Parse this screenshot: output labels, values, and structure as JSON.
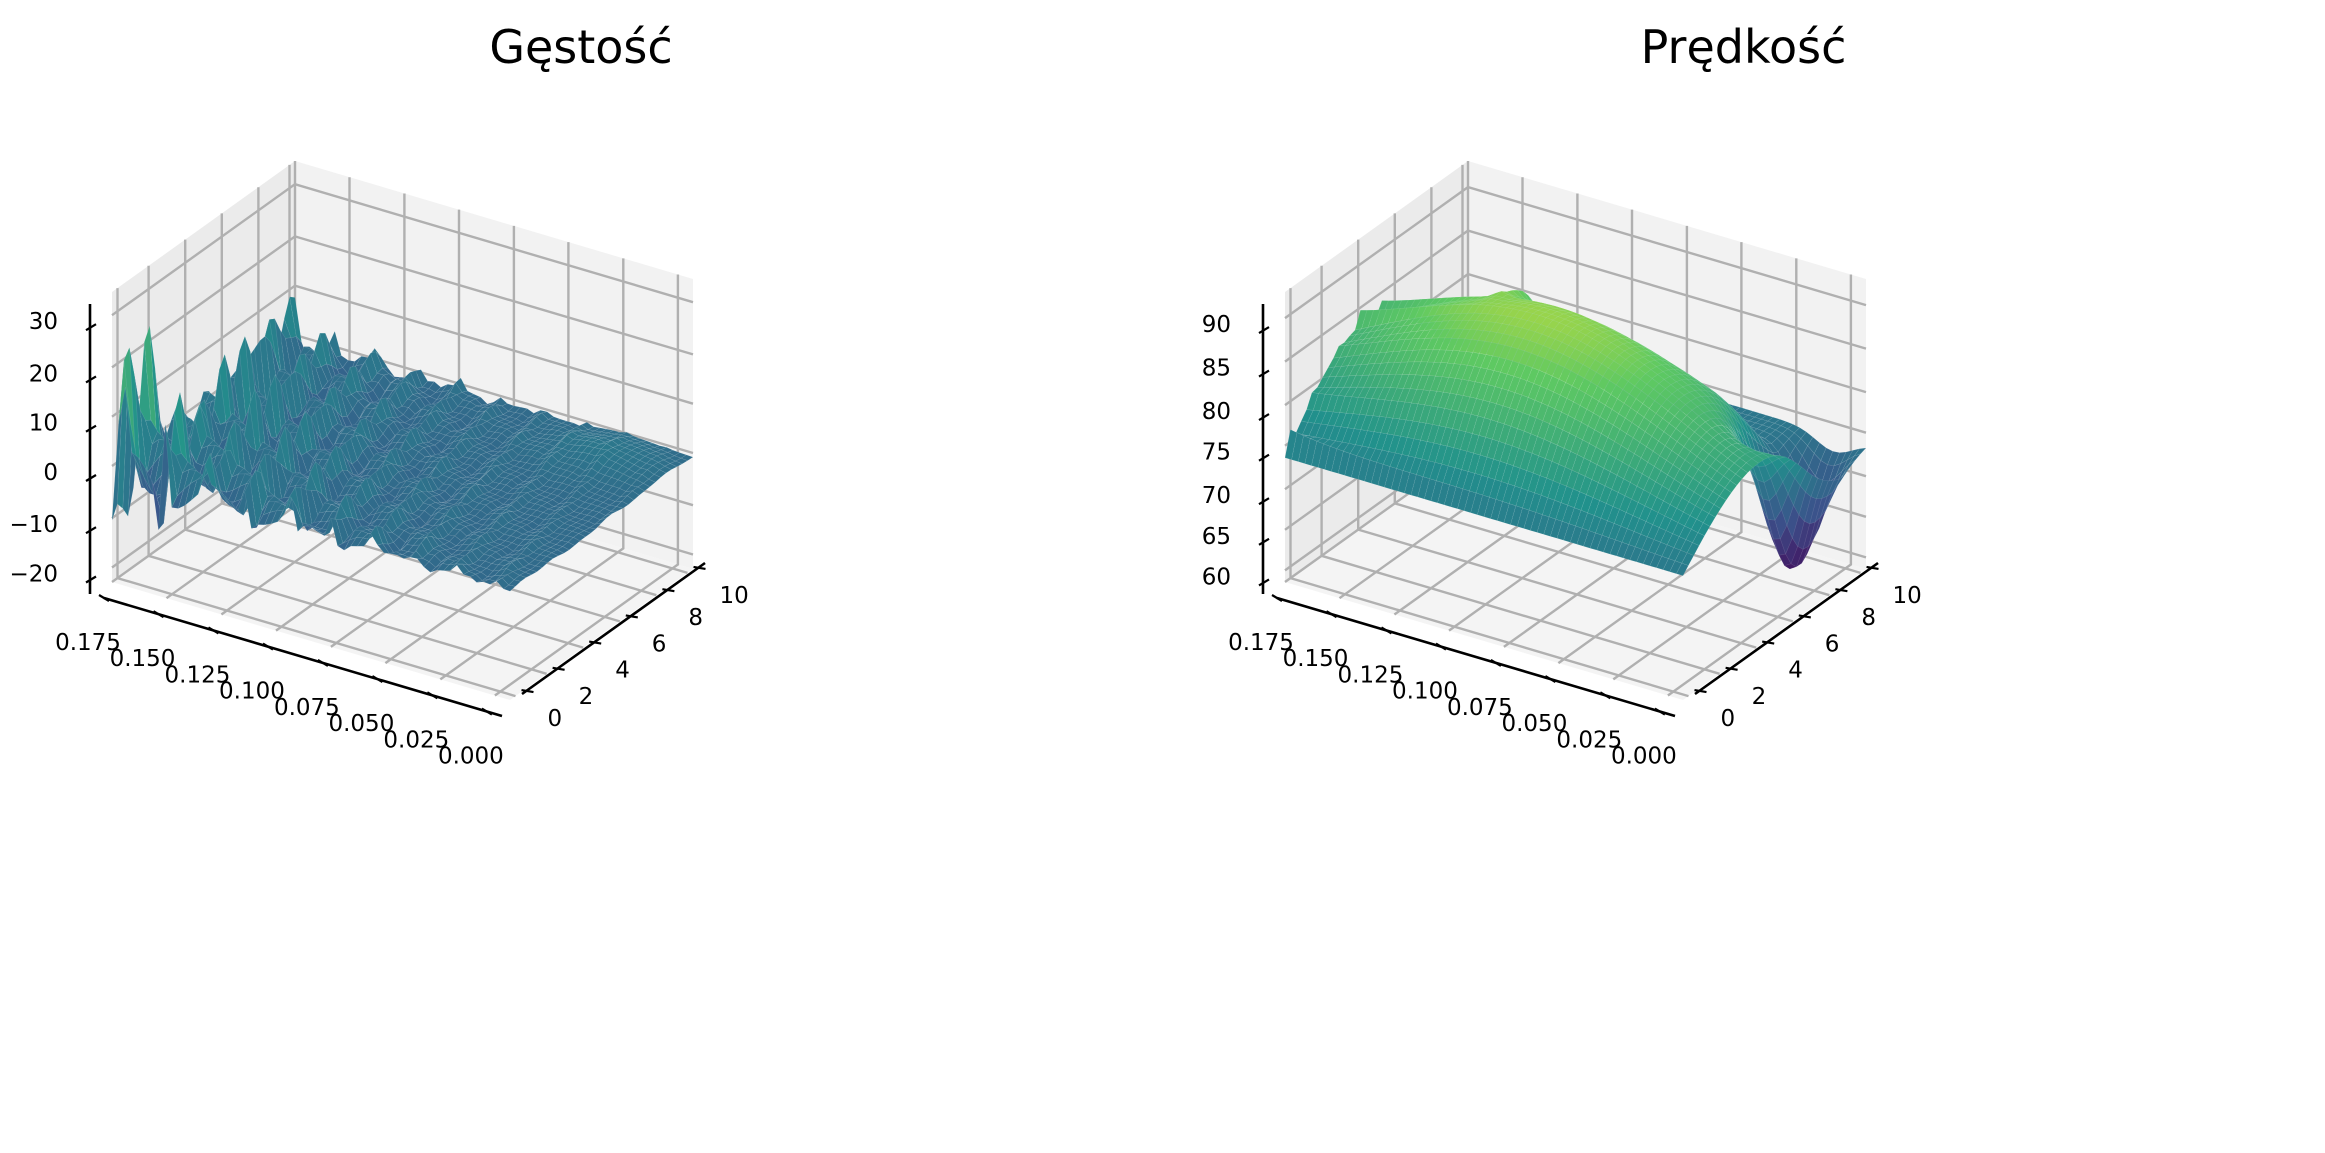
{
  "chart_data": [
    {
      "type": "surface3d",
      "title": "Gęstość",
      "xlabel": "",
      "ylabel": "",
      "zlabel": "",
      "x_ticks": [
        "0.175",
        "0.150",
        "0.125",
        "0.100",
        "0.075",
        "0.050",
        "0.025",
        "0.000"
      ],
      "y_ticks": [
        "0",
        "2",
        "4",
        "6",
        "8",
        "10"
      ],
      "z_ticks": [
        "−20",
        "−10",
        "0",
        "10",
        "20",
        "30"
      ],
      "xlim": [
        0,
        0.18
      ],
      "ylim": [
        0,
        10
      ],
      "zlim": [
        -20,
        38
      ],
      "colormap": "viridis",
      "grid": true,
      "surface_description_points": [
        {
          "x": 0.17,
          "y": 0.5,
          "z": 5
        },
        {
          "x": 0.12,
          "y": 1.0,
          "z": 32
        },
        {
          "x": 0.1,
          "y": 3.0,
          "z": 30
        },
        {
          "x": 0.05,
          "y": 8.0,
          "z": 12
        },
        {
          "x": 0.0,
          "y": 10.0,
          "z": 3
        }
      ]
    },
    {
      "type": "surface3d",
      "title": "Prędkość",
      "xlabel": "",
      "ylabel": "",
      "zlabel": "",
      "x_ticks": [
        "0.175",
        "0.150",
        "0.125",
        "0.100",
        "0.075",
        "0.050",
        "0.025",
        "0.000"
      ],
      "y_ticks": [
        "0",
        "2",
        "4",
        "6",
        "8",
        "10"
      ],
      "z_ticks": [
        "60",
        "65",
        "70",
        "75",
        "80",
        "85",
        "90"
      ],
      "xlim": [
        0,
        0.18
      ],
      "ylim": [
        0,
        10
      ],
      "zlim": [
        60,
        95
      ],
      "colormap": "viridis",
      "grid": true,
      "surface_description_points": [
        {
          "x": 0.17,
          "y": 0.0,
          "z": 75
        },
        {
          "x": 0.1,
          "y": 4.0,
          "z": 92
        },
        {
          "x": 0.02,
          "y": 8.5,
          "z": 62
        },
        {
          "x": 0.0,
          "y": 10.0,
          "z": 78
        }
      ]
    }
  ]
}
